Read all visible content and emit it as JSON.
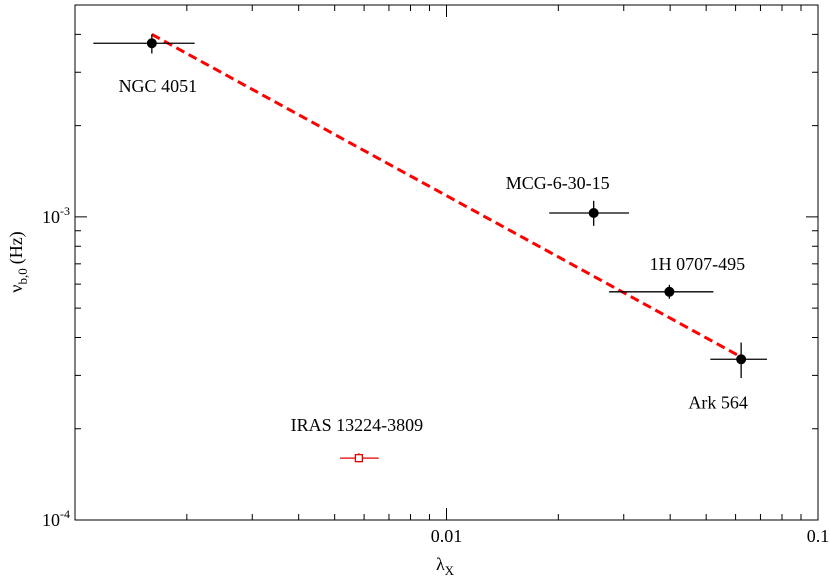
{
  "chart_data": {
    "type": "scatter",
    "log_x": true,
    "log_y": true,
    "xlabel": {
      "symbol": "λ",
      "sub": "X"
    },
    "ylabel": {
      "symbol": "ν",
      "sub": "b,0",
      "unit": "(Hz)"
    },
    "xlim": [
      0.001,
      0.1
    ],
    "ylim": [
      0.0001,
      0.005
    ],
    "xticks": [
      0.01,
      0.1
    ],
    "xminorticks": [
      0.002,
      0.003,
      0.004,
      0.005,
      0.006,
      0.007,
      0.008,
      0.009,
      0.02,
      0.03,
      0.04,
      0.05,
      0.06,
      0.07,
      0.08,
      0.09
    ],
    "yticks": [
      {
        "value": 0.0001,
        "label": "10",
        "exponent": "-4"
      },
      {
        "value": 0.001,
        "label": "10",
        "exponent": "-3"
      }
    ],
    "yminorticks": [
      0.0002,
      0.0003,
      0.0004,
      0.0005,
      0.0006,
      0.0007,
      0.0008,
      0.0009,
      0.002,
      0.003,
      0.004,
      0.005
    ],
    "points": [
      {
        "label": "NGC 4051",
        "x": 0.00161,
        "y": 0.00374,
        "x_low": 0.00112,
        "x_high": 0.0021,
        "y_low": 0.00346,
        "y_high": 0.004,
        "color": "#000000",
        "marker": "filled-circle"
      },
      {
        "label": "MCG-6-30-15",
        "x": 0.0249,
        "y": 0.00103,
        "x_low": 0.0189,
        "x_high": 0.031,
        "y_low": 0.000934,
        "y_high": 0.00113,
        "color": "#000000",
        "marker": "filled-circle"
      },
      {
        "label": "1H 0707-495",
        "x": 0.0398,
        "y": 0.000566,
        "x_low": 0.0274,
        "x_high": 0.0523,
        "y_low": 0.000537,
        "y_high": 0.000597,
        "color": "#000000",
        "marker": "filled-circle"
      },
      {
        "label": "Ark 564",
        "x": 0.0621,
        "y": 0.000339,
        "x_low": 0.0513,
        "x_high": 0.0729,
        "y_low": 0.000294,
        "y_high": 0.000385,
        "color": "#000000",
        "marker": "filled-circle"
      },
      {
        "label": "IRAS 13224-3809",
        "x": 0.00581,
        "y": 0.00016,
        "x_low": 0.00517,
        "x_high": 0.00657,
        "y_low": 0.000155,
        "y_high": 0.000166,
        "color": "#e00000",
        "marker": "open-square"
      }
    ],
    "fit_line": {
      "x": [
        0.00161,
        0.0621
      ],
      "y": [
        0.004,
        0.000345
      ],
      "color": "#ff0000",
      "dashed": true
    }
  }
}
